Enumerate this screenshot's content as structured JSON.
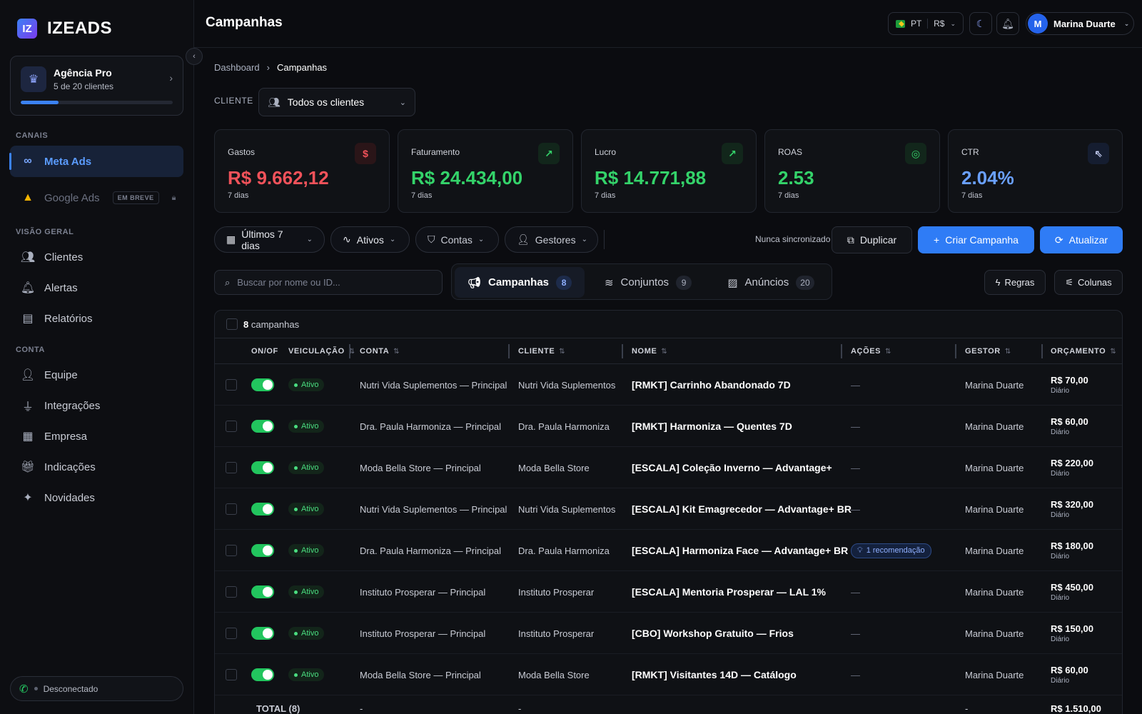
{
  "brand": {
    "name": "IZEADS",
    "mark": "IZ"
  },
  "plan": {
    "title": "Agência Pro",
    "subtitle": "5 de 20 clientes",
    "usage_fraction": 0.25
  },
  "sidebar": {
    "section_channels": "CANAIS",
    "channels": [
      {
        "label": "Meta Ads",
        "active": true
      },
      {
        "label": "Google Ads",
        "badge": "EM BREVE",
        "disabled": true
      }
    ],
    "section_overview": "VISÃO GERAL",
    "overview": [
      {
        "label": "Clientes"
      },
      {
        "label": "Alertas"
      },
      {
        "label": "Relatórios"
      }
    ],
    "section_account": "CONTA",
    "account": [
      {
        "label": "Equipe"
      },
      {
        "label": "Integrações"
      },
      {
        "label": "Empresa"
      },
      {
        "label": "Indicações"
      },
      {
        "label": "Novidades"
      }
    ],
    "connection_status": "Desconectado"
  },
  "header": {
    "title": "Campanhas",
    "lang": "PT",
    "currency": "R$",
    "user_initial": "M",
    "user_name": "Marina Duarte"
  },
  "breadcrumb": {
    "root": "Dashboard",
    "current": "Campanhas"
  },
  "client_filter": {
    "label": "CLIENTE",
    "value": "Todos os clientes"
  },
  "kpis": [
    {
      "label": "Gastos",
      "value": "R$ 9.662,12",
      "sub": "7 dias",
      "color": "#f0525a",
      "icon": "dollar-icon"
    },
    {
      "label": "Faturamento",
      "value": "R$ 24.434,00",
      "sub": "7 dias",
      "color": "#34d36a",
      "icon": "trend-up-icon"
    },
    {
      "label": "Lucro",
      "value": "R$ 14.771,88",
      "sub": "7 dias",
      "color": "#34d36a",
      "icon": "trend-up-icon"
    },
    {
      "label": "ROAS",
      "value": "2.53",
      "sub": "7 dias",
      "color": "#34d36a",
      "icon": "target-icon"
    },
    {
      "label": "CTR",
      "value": "2.04%",
      "sub": "7 dias",
      "color": "#6aa0ff",
      "icon": "cursor-icon"
    }
  ],
  "filters": {
    "period": "Últimos 7 dias",
    "status": "Ativos",
    "accounts": "Contas",
    "managers": "Gestores"
  },
  "sync_text": "Nunca sincronizado",
  "actions": {
    "duplicate": "Duplicar",
    "create": "Criar Campanha",
    "refresh": "Atualizar"
  },
  "search": {
    "placeholder": "Buscar por nome ou ID..."
  },
  "tabs": [
    {
      "label": "Campanhas",
      "count": "8",
      "active": true
    },
    {
      "label": "Conjuntos",
      "count": "9"
    },
    {
      "label": "Anúncios",
      "count": "20"
    }
  ],
  "tools": {
    "rules": "Regras",
    "columns": "Colunas"
  },
  "table": {
    "count_bold": "8",
    "count_label": "campanhas",
    "columns": {
      "onoff": "ON/OF",
      "delivery": "VEICULAÇÃO",
      "account": "CONTA",
      "client": "CLIENTE",
      "name": "NOME",
      "actions": "AÇÕES",
      "manager": "GESTOR",
      "budget": "ORÇAMENTO"
    },
    "rows": [
      {
        "status": "Ativo",
        "account": "Nutri Vida Suplementos — Principal",
        "client": "Nutri Vida Suplementos",
        "name": "[RMKT] Carrinho Abandonado 7D",
        "actions": "—",
        "manager": "Marina Duarte",
        "budget": "R$ 70,00",
        "freq": "Diário"
      },
      {
        "status": "Ativo",
        "account": "Dra. Paula Harmoniza — Principal",
        "client": "Dra. Paula Harmoniza",
        "name": "[RMKT] Harmoniza — Quentes 7D",
        "actions": "—",
        "manager": "Marina Duarte",
        "budget": "R$ 60,00",
        "freq": "Diário"
      },
      {
        "status": "Ativo",
        "account": "Moda Bella Store — Principal",
        "client": "Moda Bella Store",
        "name": "[ESCALA] Coleção Inverno — Advantage+",
        "actions": "—",
        "manager": "Marina Duarte",
        "budget": "R$ 220,00",
        "freq": "Diário"
      },
      {
        "status": "Ativo",
        "account": "Nutri Vida Suplementos — Principal",
        "client": "Nutri Vida Suplementos",
        "name": "[ESCALA] Kit Emagrecedor — Advantage+ BR",
        "actions": "—",
        "manager": "Marina Duarte",
        "budget": "R$ 320,00",
        "freq": "Diário"
      },
      {
        "status": "Ativo",
        "account": "Dra. Paula Harmoniza — Principal",
        "client": "Dra. Paula Harmoniza",
        "name": "[ESCALA] Harmoniza Face — Advantage+ BR",
        "actions": "1 recomendação",
        "manager": "Marina Duarte",
        "budget": "R$ 180,00",
        "freq": "Diário"
      },
      {
        "status": "Ativo",
        "account": "Instituto Prosperar — Principal",
        "client": "Instituto Prosperar",
        "name": "[ESCALA] Mentoria Prosperar — LAL 1%",
        "actions": "—",
        "manager": "Marina Duarte",
        "budget": "R$ 450,00",
        "freq": "Diário"
      },
      {
        "status": "Ativo",
        "account": "Instituto Prosperar — Principal",
        "client": "Instituto Prosperar",
        "name": "[CBO] Workshop Gratuito — Frios",
        "actions": "—",
        "manager": "Marina Duarte",
        "budget": "R$ 150,00",
        "freq": "Diário"
      },
      {
        "status": "Ativo",
        "account": "Moda Bella Store — Principal",
        "client": "Moda Bella Store",
        "name": "[RMKT] Visitantes 14D — Catálogo",
        "actions": "—",
        "manager": "Marina Duarte",
        "budget": "R$ 60,00",
        "freq": "Diário"
      }
    ],
    "total": {
      "label": "TOTAL (8)",
      "account": "-",
      "client": "-",
      "manager": "-",
      "budget": "R$ 1.510,00"
    }
  }
}
